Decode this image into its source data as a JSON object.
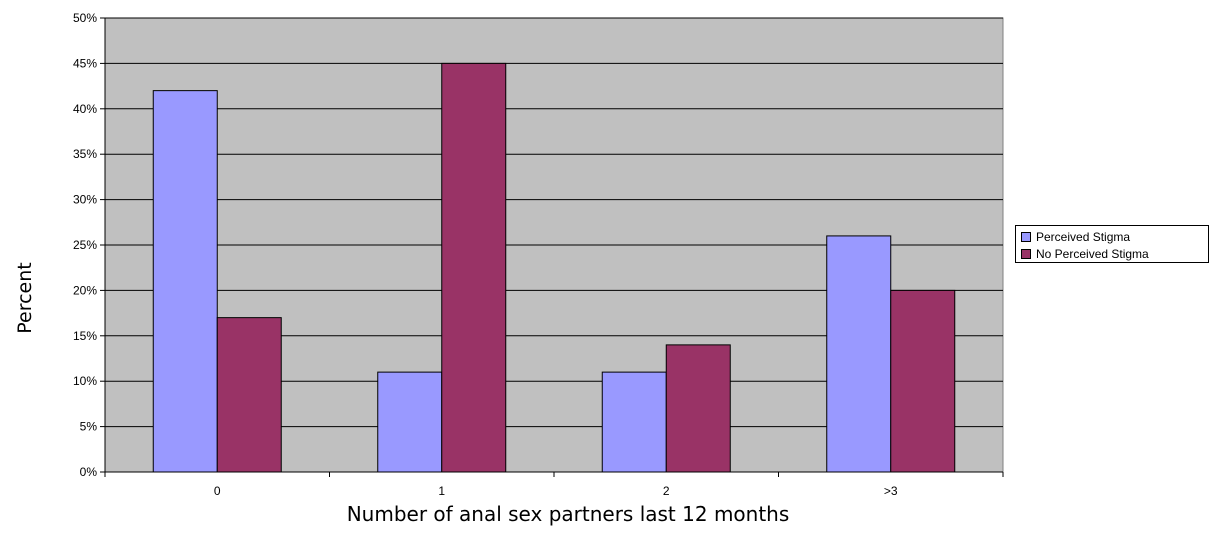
{
  "chart_data": {
    "type": "bar",
    "title": "",
    "xlabel": "Number of anal sex partners last 12 months",
    "ylabel": "Percent",
    "categories": [
      "0",
      "1",
      "2",
      ">3"
    ],
    "series": [
      {
        "name": "Perceived Stigma",
        "values": [
          42,
          11,
          11,
          26
        ],
        "color": "#9999FF"
      },
      {
        "name": "No Perceived Stigma",
        "values": [
          17,
          45,
          14,
          20
        ],
        "color": "#993366"
      }
    ],
    "ylim": [
      0,
      50
    ],
    "yticks": [
      "0%",
      "5%",
      "10%",
      "15%",
      "20%",
      "25%",
      "30%",
      "35%",
      "40%",
      "45%",
      "50%"
    ],
    "grid": true,
    "legend_position": "right",
    "plot_background": "#C0C0C0"
  }
}
